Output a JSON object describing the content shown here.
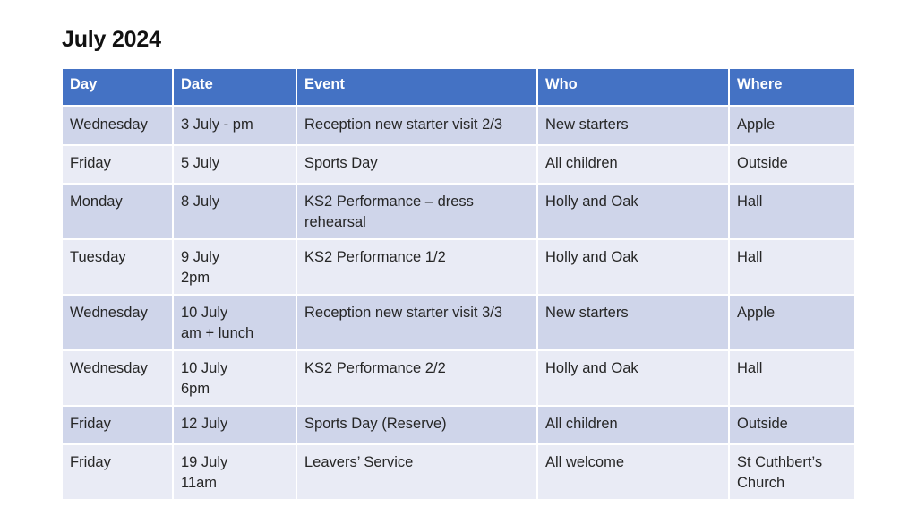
{
  "page": {
    "title": "July 2024"
  },
  "table": {
    "headers": [
      "Day",
      "Date",
      "Event",
      "Who",
      "Where"
    ],
    "rows": [
      [
        "Wednesday",
        "3 July - pm",
        "Reception new starter visit 2/3",
        "New starters",
        "Apple"
      ],
      [
        "Friday",
        "5 July",
        "Sports Day",
        "All children",
        "Outside"
      ],
      [
        "Monday",
        "8 July",
        "KS2 Performance – dress\nrehearsal",
        "Holly and Oak",
        "Hall"
      ],
      [
        "Tuesday",
        "9 July\n2pm",
        "KS2 Performance 1/2",
        "Holly and Oak",
        "Hall"
      ],
      [
        "Wednesday",
        "10 July\nam + lunch",
        "Reception new starter visit 3/3",
        "New starters",
        "Apple"
      ],
      [
        "Wednesday",
        "10 July\n6pm",
        "KS2 Performance 2/2",
        "Holly and Oak",
        "Hall"
      ],
      [
        "Friday",
        "12 July",
        "Sports Day (Reserve)",
        "All children",
        "Outside"
      ],
      [
        "Friday",
        "19 July\n11am",
        "Leavers’ Service",
        "All welcome",
        "St Cuthbert’s\nChurch"
      ]
    ]
  },
  "colors": {
    "header_bg": "#4472c4",
    "row_odd_bg": "#cfd5ea",
    "row_even_bg": "#e9ebf5"
  }
}
